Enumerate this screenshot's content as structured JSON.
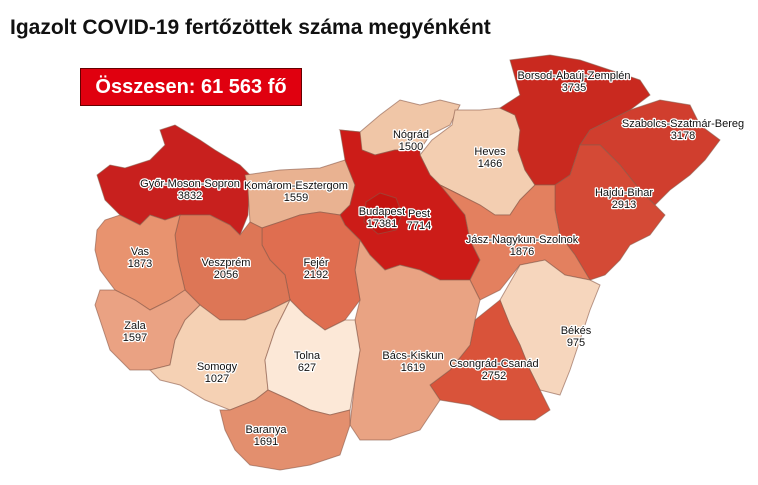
{
  "title": "Igazolt COVID-19 fertőzöttek száma megyénként",
  "total_badge": "Összesen: 61 563 fő",
  "colors": {
    "badge": "#e0000f",
    "high": "#cc1f1a",
    "low": "#fbe6d4"
  },
  "counties": [
    {
      "id": "gyor",
      "name": "Győr-Moson-Sopron",
      "value": "3832",
      "color": "#c8201e"
    },
    {
      "id": "komarom",
      "name": "Komárom-Esztergom",
      "value": "1559",
      "color": "#e9b291"
    },
    {
      "id": "nograd",
      "name": "Nógrád",
      "value": "1500",
      "color": "#f0c6a7"
    },
    {
      "id": "heves",
      "name": "Heves",
      "value": "1466",
      "color": "#f3ceb1"
    },
    {
      "id": "borsod",
      "name": "Borsod-Abaúj-Zemplén",
      "value": "3735",
      "color": "#c9291f"
    },
    {
      "id": "szabolcs",
      "name": "Szabolcs-Szatmár-Bereg",
      "value": "3178",
      "color": "#d03e2e"
    },
    {
      "id": "hajdu",
      "name": "Hajdú-Bihar",
      "value": "2913",
      "color": "#d44a36"
    },
    {
      "id": "pest",
      "name": "Pest",
      "value": "7714",
      "color": "#cc1c18"
    },
    {
      "id": "budapest",
      "name": "Budapest",
      "value": "17381",
      "color": "#c41410"
    },
    {
      "id": "jasz",
      "name": "Jász-Nagykun-Szolnok",
      "value": "1876",
      "color": "#e3805f"
    },
    {
      "id": "bekes",
      "name": "Békés",
      "value": "975",
      "color": "#f6d6bd"
    },
    {
      "id": "csongrad",
      "name": "Csongrád-Csanád",
      "value": "2752",
      "color": "#d9533a"
    },
    {
      "id": "bacs",
      "name": "Bács-Kiskun",
      "value": "1619",
      "color": "#e9a383"
    },
    {
      "id": "fejer",
      "name": "Fejér",
      "value": "2192",
      "color": "#df6e50"
    },
    {
      "id": "veszprem",
      "name": "Veszprém",
      "value": "2056",
      "color": "#dd7656"
    },
    {
      "id": "vas",
      "name": "Vas",
      "value": "1873",
      "color": "#e8936f"
    },
    {
      "id": "zala",
      "name": "Zala",
      "value": "1597",
      "color": "#eaa283"
    },
    {
      "id": "somogy",
      "name": "Somogy",
      "value": "1027",
      "color": "#f5d1b4"
    },
    {
      "id": "tolna",
      "name": "Tolna",
      "value": "627",
      "color": "#fce8d7"
    },
    {
      "id": "baranya",
      "name": "Baranya",
      "value": "1691",
      "color": "#e38f6e"
    }
  ]
}
